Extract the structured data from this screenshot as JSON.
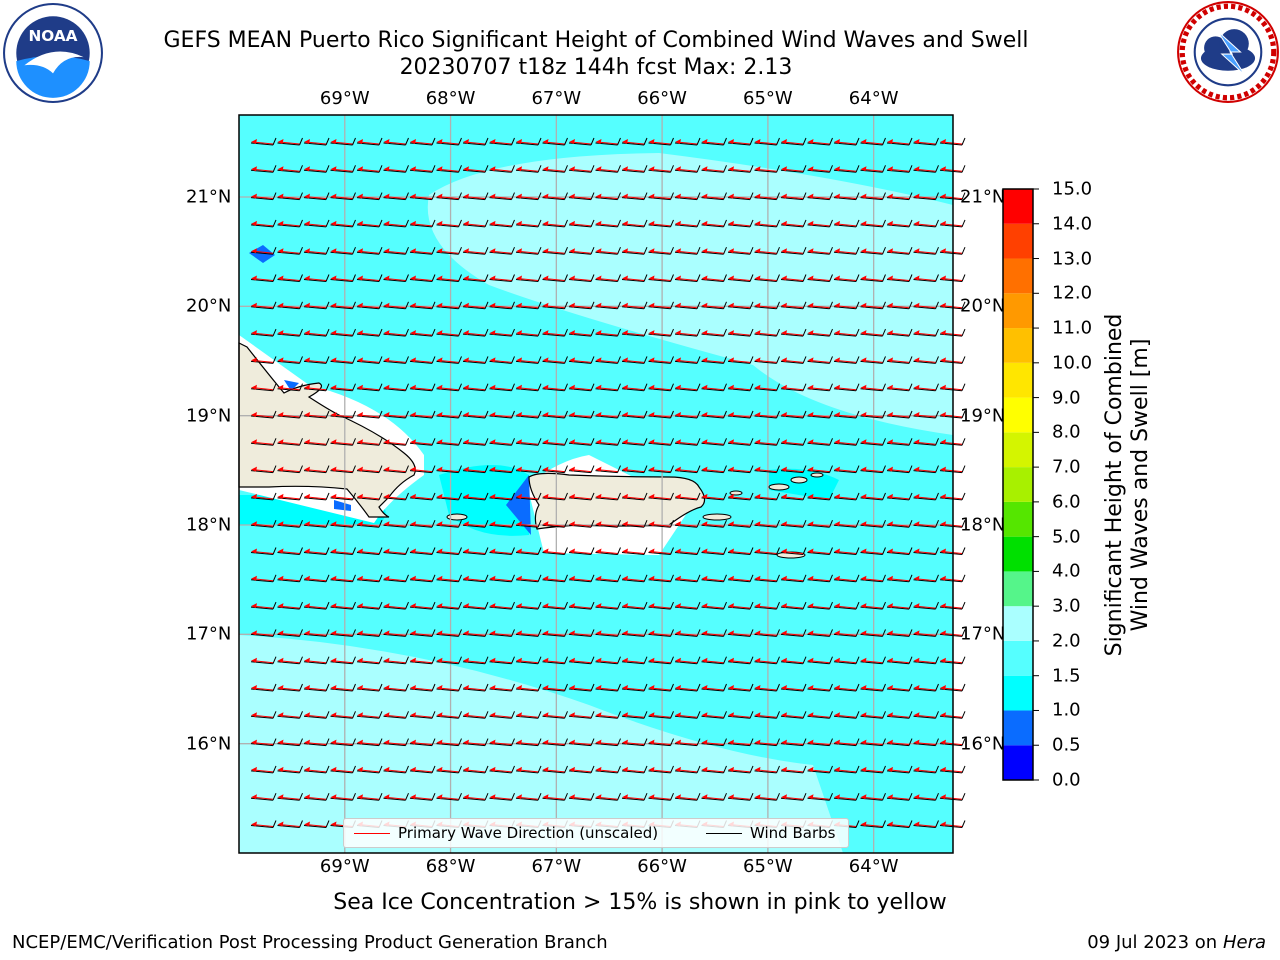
{
  "title": {
    "line1": "GEFS MEAN Puerto Rico Significant Height of Combined Wind Waves and Swell",
    "line2": "20230707 t18z 144h fcst   Max: 2.13"
  },
  "logos": {
    "left": "noaa-logo",
    "right": "national-weather-service-logo"
  },
  "map": {
    "lon_ticks": [
      "69°W",
      "68°W",
      "67°W",
      "66°W",
      "65°W",
      "64°W"
    ],
    "lat_ticks": [
      "21°N",
      "20°N",
      "19°N",
      "18°N",
      "17°N",
      "16°N"
    ],
    "lon_range": [
      -70.0,
      -63.25
    ],
    "lat_range": [
      15.0,
      21.75
    ],
    "land_color": "#efecdc",
    "barb_color": "#000000",
    "wave_arrow_color": "#ff0000",
    "max_value": 2.13
  },
  "colorbar": {
    "title_line1": "Significant Height of Combined",
    "title_line2": "Wind Waves and Swell [m]",
    "levels": [
      "0.0",
      "0.5",
      "1.0",
      "1.5",
      "2.0",
      "3.0",
      "4.0",
      "5.0",
      "6.0",
      "7.0",
      "8.0",
      "9.0",
      "10.0",
      "11.0",
      "12.0",
      "13.0",
      "14.0",
      "15.0"
    ],
    "colors": [
      "#0000ff",
      "#0a6cff",
      "#00ffff",
      "#55ffff",
      "#aaffff",
      "#55f58a",
      "#00e000",
      "#55e600",
      "#a8f000",
      "#d4f500",
      "#ffff00",
      "#ffe600",
      "#ffc000",
      "#ff9900",
      "#ff7000",
      "#ff4000",
      "#ff0000"
    ]
  },
  "legend": {
    "wave_label": "Primary Wave Direction (unscaled)",
    "barb_label": "Wind Barbs"
  },
  "ice_note": "Sea Ice Concentration > 15% is shown in pink to yellow",
  "footer": {
    "left": "NCEP/EMC/Verification Post Processing Product Generation Branch",
    "date": "09 Jul 2023 on ",
    "machine": "Hera"
  }
}
